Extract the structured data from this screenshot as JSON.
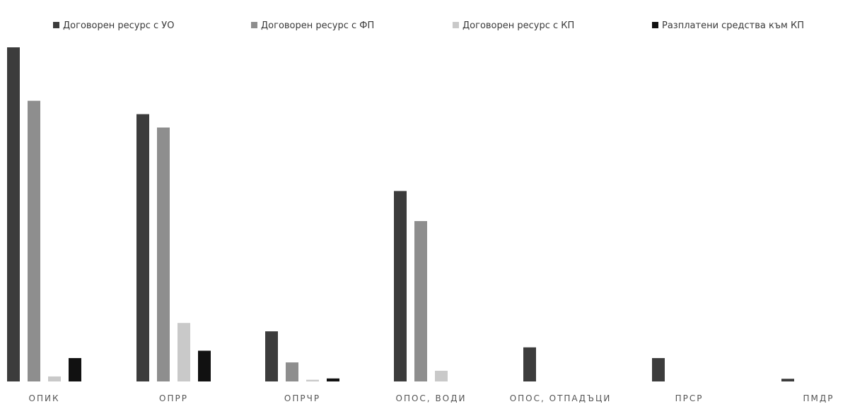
{
  "chart_data": {
    "type": "bar",
    "categories": [
      "ОПИК",
      "ОПРР",
      "ОПРЧР",
      "ОПОС, ВОДИ",
      "ОПОС, ОТПАДЪЦИ",
      "ПРСР",
      "ПМДР"
    ],
    "series": [
      {
        "name": "Договорен ресурс с УО",
        "values": [
          100,
          80,
          15,
          57,
          10.2,
          7.0,
          0.8
        ],
        "color": "#3c3c3c"
      },
      {
        "name": "Договорен ресурс с ФП",
        "values": [
          84,
          76,
          5.7,
          48,
          0,
          0,
          0
        ],
        "color": "#8e8e8e"
      },
      {
        "name": "Договорен ресурс с КП",
        "values": [
          1.5,
          17.5,
          0.5,
          3.2,
          0,
          0,
          0
        ],
        "color": "#c9c9c9"
      },
      {
        "name": "Разплатени средства към КП",
        "values": [
          7.0,
          9.2,
          0.9,
          0,
          0,
          0,
          0
        ],
        "color": "#111111"
      }
    ],
    "ylim": [
      0,
      100
    ],
    "grid": false,
    "legend_position": "top"
  }
}
